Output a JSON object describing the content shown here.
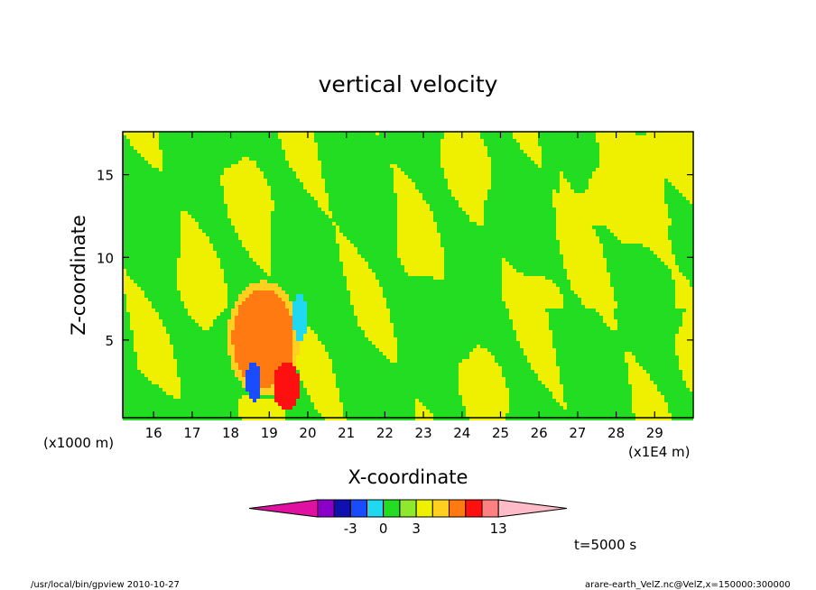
{
  "chart_data": {
    "type": "heatmap",
    "title": "vertical velocity",
    "xlabel": "X-coordinate",
    "ylabel": "Z-coordinate",
    "x_unit_left": "(x1000 m)",
    "x_unit_right": "(x1E4 m)",
    "xlim": [
      15.2,
      30.0
    ],
    "ylim": [
      0.3,
      17.6
    ],
    "x_ticks": [
      "16",
      "17",
      "18",
      "19",
      "20",
      "21",
      "22",
      "23",
      "24",
      "25",
      "26",
      "27",
      "28",
      "29"
    ],
    "y_ticks": [
      "5",
      "10",
      "15"
    ],
    "time_label": "t=5000 s",
    "colorbar": {
      "tick_labels": [
        "-3",
        "0",
        "3",
        "13"
      ],
      "colors": [
        "#e010a0",
        "#8a00c8",
        "#1010b0",
        "#1a4cff",
        "#20d8f0",
        "#22dd22",
        "#8ee82e",
        "#eef000",
        "#ffd020",
        "#ff7a10",
        "#ff1010",
        "#ff8080",
        "#ffbcc8"
      ]
    },
    "series": [
      {
        "color": "#22dd22",
        "fields": []
      },
      {
        "color": "#eef000",
        "fields": []
      }
    ]
  },
  "footer": {
    "left": "/usr/local/bin/gpview   2010-10-27",
    "right": "arare-earth_VelZ.nc@VelZ,x=150000:300000"
  }
}
